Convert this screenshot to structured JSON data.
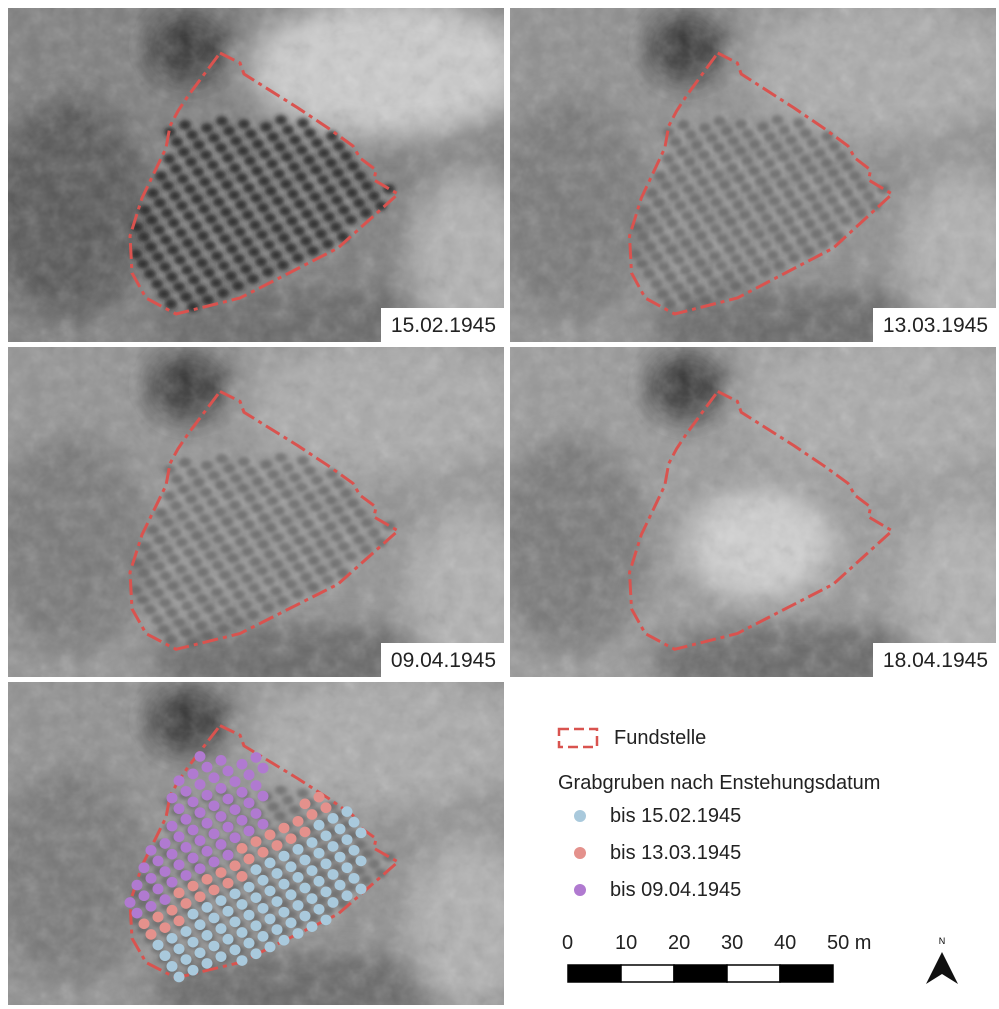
{
  "panels": [
    {
      "date": "15.02.1945"
    },
    {
      "date": "13.03.1945"
    },
    {
      "date": "09.04.1945"
    },
    {
      "date": "18.04.1945"
    }
  ],
  "legend": {
    "site": {
      "label": "Fundstelle",
      "color": "#d9534f"
    },
    "group_title": "Grabgruben nach Enstehungsdatum",
    "items": [
      {
        "label": "bis 15.02.1945",
        "color": "#a9c9dc"
      },
      {
        "label": "bis 13.03.1945",
        "color": "#e4918c"
      },
      {
        "label": "bis 09.04.1945",
        "color": "#b07ad0"
      }
    ]
  },
  "scale": {
    "labels": [
      "0",
      "10",
      "20",
      "30",
      "40",
      "50 m"
    ]
  },
  "north": "N"
}
